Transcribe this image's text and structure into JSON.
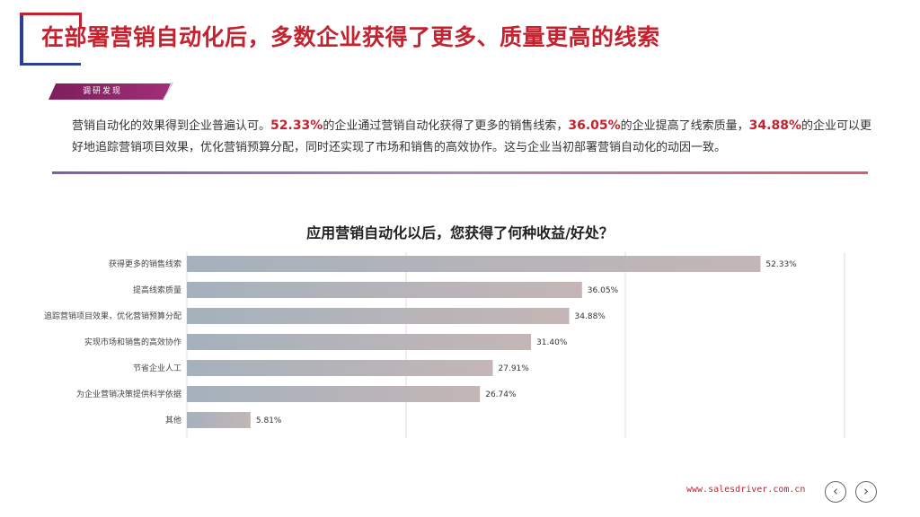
{
  "header": {
    "title": "在部署营销自动化后，多数企业获得了更多、质量更高的线索",
    "tag": "调研发现"
  },
  "summary": {
    "p1": "营销自动化的效果得到企业普遍认可。",
    "h1": "52.33%",
    "p2": "的企业通过营销自动化获得了更多的销售线索，",
    "h2": "36.05%",
    "p3": "的企业提高了线索质量，",
    "h3": "34.88%",
    "p4": "的企业可以更好地追踪营销项目效果，优化营销预算分配，同时还实现了市场和销售的高效协作。这与企业当初部署营销自动化的动因一致。"
  },
  "chart_data": {
    "type": "bar",
    "orientation": "horizontal",
    "title": "应用营销自动化以后，您获得了何种收益/好处？",
    "categories": [
      "获得更多的销售线索",
      "提高线索质量",
      "追踪营销项目效果，优化营销预算分配",
      "实现市场和销售的高效协作",
      "节省企业人工",
      "为企业营销决策提供科学依据",
      "其他"
    ],
    "values": [
      52.33,
      36.05,
      34.88,
      31.4,
      27.91,
      26.74,
      5.81
    ],
    "value_labels": [
      "52.33%",
      "36.05%",
      "34.88%",
      "31.40%",
      "27.91%",
      "26.74%",
      "5.81%"
    ],
    "xlim": [
      0,
      60
    ],
    "grid": true,
    "colors": {
      "bar_start": "#a5b1bc",
      "bar_end": "#c4b6b6"
    }
  },
  "footer": {
    "site": "www.salesdriver.com.cn",
    "prev_icon": "‹",
    "next_icon": "›"
  }
}
